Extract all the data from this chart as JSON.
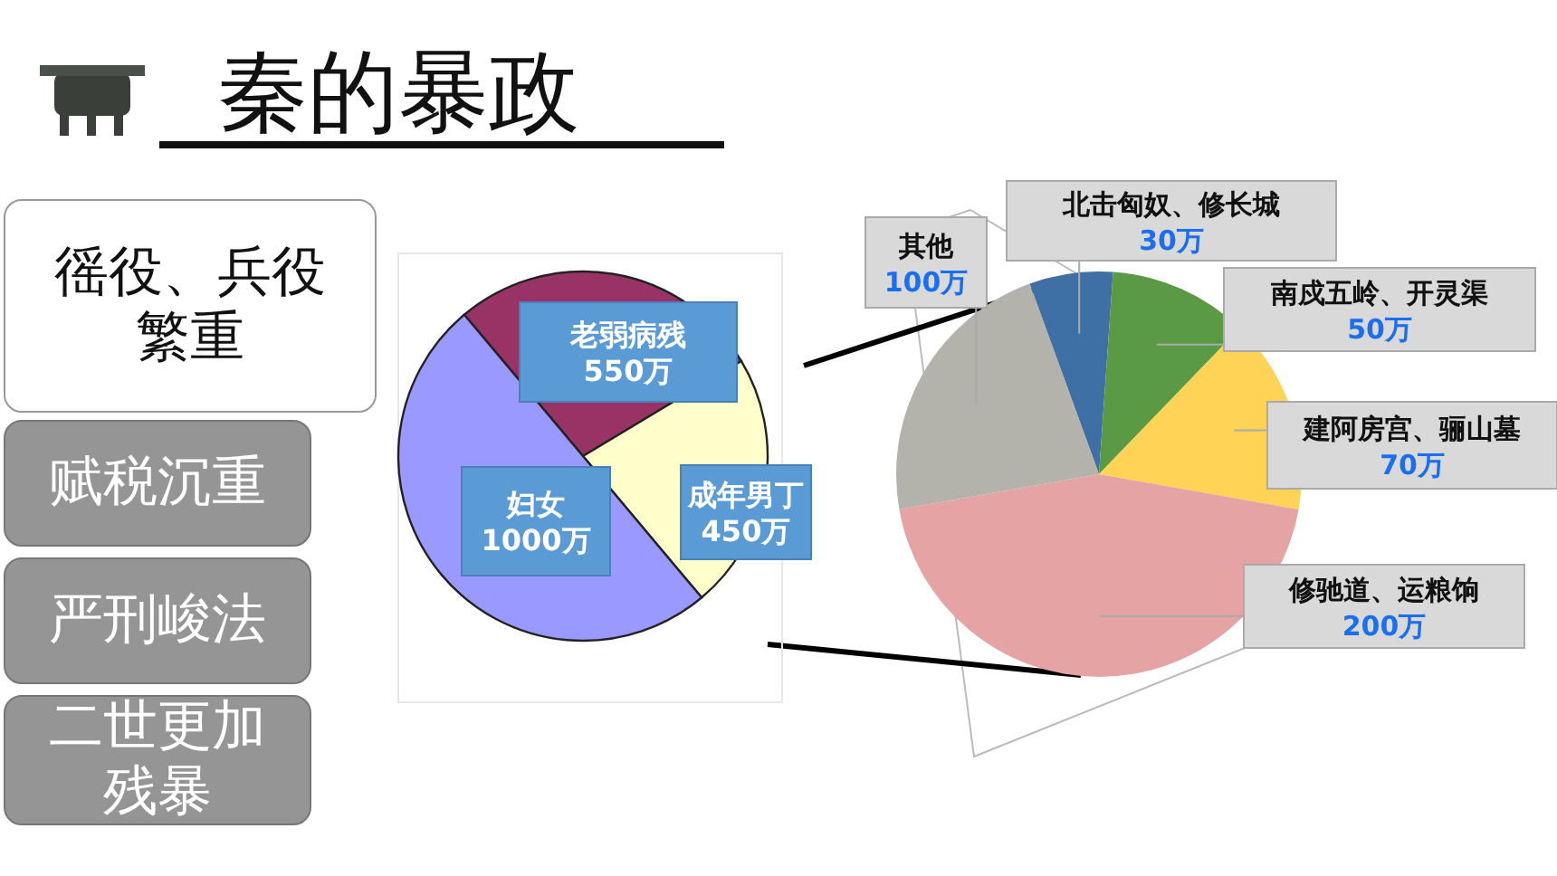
{
  "chart_data": [
    {
      "type": "other",
      "title": "秦的暴政",
      "annotations": [
        "徭役、兵役繁重",
        "赋税沉重",
        "严刑峻法",
        "二世更加残暴"
      ]
    },
    {
      "type": "pie",
      "categories": [
        "老弱病残",
        "成年男丁",
        "妇女"
      ],
      "values": [
        550,
        450,
        1000
      ],
      "value_labels": [
        "550万",
        "450万",
        "1000万"
      ],
      "colors": [
        "#993366",
        "#ffffcc",
        "#9999ff"
      ]
    },
    {
      "type": "pie",
      "categories": [
        "北击匈奴、修长城",
        "南戍五岭、开灵渠",
        "建阿房宫、骊山墓",
        "修驰道、运粮饷",
        "其他"
      ],
      "values": [
        30,
        50,
        70,
        200,
        100
      ],
      "value_labels": [
        "30万",
        "50万",
        "70万",
        "200万",
        "100万"
      ],
      "colors": [
        "#3e6fa5",
        "#5b9a44",
        "#ffd355",
        "#e5a3a3",
        "#b3b3ab"
      ]
    }
  ]
}
